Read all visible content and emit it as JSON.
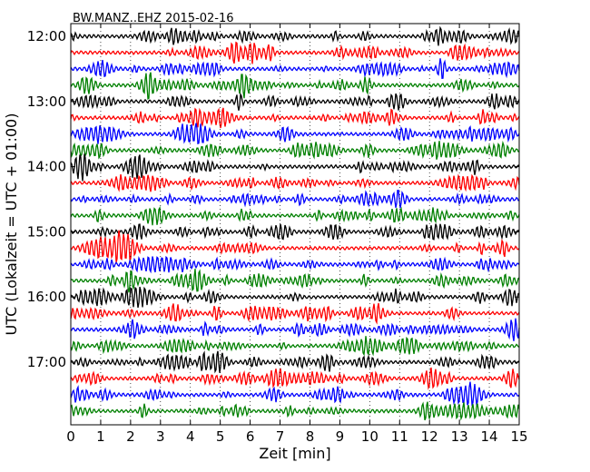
{
  "chart_data": {
    "type": "line",
    "title": "BW.MANZ..EHZ 2015-02-16",
    "xlabel": "Zeit  [min]",
    "ylabel": "UTC (Lokalzeit = UTC + 01:00)",
    "xlim": [
      0,
      15
    ],
    "x_ticks": [
      "0",
      "1",
      "2",
      "3",
      "4",
      "5",
      "6",
      "7",
      "8",
      "9",
      "10",
      "11",
      "12",
      "13",
      "14",
      "15"
    ],
    "y_ticks": [
      "12:00",
      "13:00",
      "14:00",
      "15:00",
      "16:00",
      "17:00"
    ],
    "grid": "vertical dotted",
    "trace_colors": [
      "#000000",
      "#ff0000",
      "#0000ff",
      "#008000"
    ],
    "trace_count": 24
  }
}
